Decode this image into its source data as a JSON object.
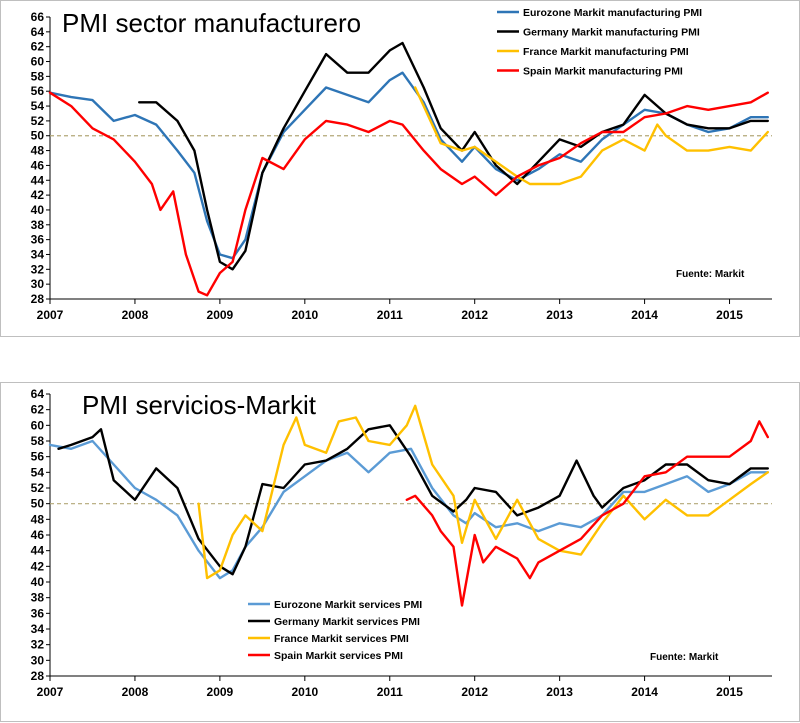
{
  "chart_data": [
    {
      "type": "line",
      "title": "PMI sector manufacturero",
      "source": "Fuente: Markit",
      "ylim": [
        28,
        66
      ],
      "ytick_step": 2,
      "xlim": [
        2007,
        2015.5
      ],
      "x_ticks": [
        2007,
        2008,
        2009,
        2010,
        2011,
        2012,
        2013,
        2014,
        2015
      ],
      "reference_line": 50,
      "series": [
        {
          "name": "Eurozone Markit manufacturing PMI",
          "color": "#2e75b6",
          "x": [
            2007.0,
            2007.25,
            2007.5,
            2007.75,
            2008.0,
            2008.25,
            2008.5,
            2008.7,
            2008.85,
            2009.0,
            2009.15,
            2009.3,
            2009.5,
            2009.75,
            2010.0,
            2010.25,
            2010.5,
            2010.75,
            2011.0,
            2011.15,
            2011.4,
            2011.6,
            2011.85,
            2012.0,
            2012.25,
            2012.5,
            2012.75,
            2013.0,
            2013.25,
            2013.5,
            2013.75,
            2014.0,
            2014.25,
            2014.5,
            2014.75,
            2015.0,
            2015.25,
            2015.45
          ],
          "y": [
            55.8,
            55.2,
            54.8,
            52.0,
            52.8,
            51.5,
            48.0,
            45.0,
            38.5,
            34.0,
            33.5,
            36.0,
            45.0,
            50.5,
            53.5,
            56.5,
            55.5,
            54.5,
            57.5,
            58.5,
            54.5,
            49.5,
            46.5,
            48.5,
            45.5,
            44.0,
            45.5,
            47.5,
            46.5,
            49.5,
            51.5,
            53.5,
            53.0,
            51.5,
            50.5,
            51.0,
            52.5,
            52.5
          ]
        },
        {
          "name": "Germany Markit manufacturing PMI",
          "color": "#000000",
          "x": [
            2008.05,
            2008.25,
            2008.5,
            2008.7,
            2008.85,
            2009.0,
            2009.15,
            2009.3,
            2009.5,
            2009.75,
            2010.0,
            2010.25,
            2010.5,
            2010.75,
            2011.0,
            2011.15,
            2011.4,
            2011.6,
            2011.85,
            2012.0,
            2012.25,
            2012.5,
            2012.75,
            2013.0,
            2013.25,
            2013.5,
            2013.75,
            2014.0,
            2014.25,
            2014.5,
            2014.75,
            2015.0,
            2015.25,
            2015.45
          ],
          "y": [
            54.5,
            54.5,
            52.0,
            48.0,
            40.0,
            33.0,
            32.0,
            34.5,
            45.0,
            51.0,
            56.0,
            61.0,
            58.5,
            58.5,
            61.5,
            62.5,
            56.5,
            51.0,
            48.0,
            50.5,
            46.0,
            43.5,
            46.5,
            49.5,
            48.5,
            50.5,
            51.5,
            55.5,
            53.0,
            51.5,
            51.0,
            51.0,
            52.0,
            52.0
          ]
        },
        {
          "name": "France Markit manufacturing PMI",
          "color": "#ffc000",
          "x": [
            2011.3,
            2011.6,
            2011.85,
            2012.0,
            2012.25,
            2012.5,
            2012.65,
            2012.75,
            2013.0,
            2013.25,
            2013.5,
            2013.75,
            2014.0,
            2014.15,
            2014.25,
            2014.5,
            2014.75,
            2015.0,
            2015.25,
            2015.45
          ],
          "y": [
            56.5,
            49.0,
            48.0,
            48.5,
            46.5,
            44.5,
            43.5,
            43.5,
            43.5,
            44.5,
            48.0,
            49.5,
            48.0,
            51.5,
            50.0,
            48.0,
            48.0,
            48.5,
            48.0,
            50.5
          ]
        },
        {
          "name": "Spain Markit manufacturing PMI",
          "color": "#ff0000",
          "x": [
            2007.0,
            2007.25,
            2007.5,
            2007.75,
            2008.0,
            2008.2,
            2008.3,
            2008.45,
            2008.6,
            2008.75,
            2008.85,
            2009.0,
            2009.15,
            2009.3,
            2009.5,
            2009.75,
            2010.0,
            2010.25,
            2010.5,
            2010.75,
            2011.0,
            2011.15,
            2011.4,
            2011.6,
            2011.85,
            2012.0,
            2012.25,
            2012.5,
            2012.75,
            2013.0,
            2013.25,
            2013.5,
            2013.75,
            2014.0,
            2014.25,
            2014.5,
            2014.75,
            2015.0,
            2015.25,
            2015.45
          ],
          "y": [
            55.8,
            54.0,
            51.0,
            49.5,
            46.5,
            43.5,
            40.0,
            42.5,
            34.0,
            29.0,
            28.5,
            31.5,
            33.0,
            40.0,
            47.0,
            45.5,
            49.5,
            52.0,
            51.5,
            50.5,
            52.0,
            51.5,
            48.0,
            45.5,
            43.5,
            44.5,
            42.0,
            44.5,
            46.0,
            47.0,
            49.0,
            50.5,
            50.5,
            52.5,
            53.0,
            54.0,
            53.5,
            54.0,
            54.5,
            55.8
          ]
        }
      ]
    },
    {
      "type": "line",
      "title": "PMI servicios-Markit",
      "source": "Fuente: Markit",
      "ylim": [
        28,
        64
      ],
      "ytick_step": 2,
      "xlim": [
        2007,
        2015.5
      ],
      "x_ticks": [
        2007,
        2008,
        2009,
        2010,
        2011,
        2012,
        2013,
        2014,
        2015
      ],
      "reference_line": 50,
      "series": [
        {
          "name": "Eurozone Markit services PMI",
          "color": "#5b9bd5",
          "x": [
            2007.0,
            2007.25,
            2007.5,
            2007.75,
            2008.0,
            2008.25,
            2008.5,
            2008.75,
            2009.0,
            2009.15,
            2009.3,
            2009.5,
            2009.75,
            2010.0,
            2010.25,
            2010.5,
            2010.75,
            2011.0,
            2011.25,
            2011.5,
            2011.75,
            2011.9,
            2012.0,
            2012.25,
            2012.5,
            2012.75,
            2013.0,
            2013.25,
            2013.5,
            2013.75,
            2014.0,
            2014.25,
            2014.5,
            2014.75,
            2015.0,
            2015.25,
            2015.45
          ],
          "y": [
            57.5,
            57.0,
            58.0,
            55.0,
            52.0,
            50.5,
            48.5,
            44.0,
            40.5,
            41.5,
            44.5,
            47.0,
            51.5,
            53.5,
            55.5,
            56.5,
            54.0,
            56.5,
            57.0,
            52.0,
            48.5,
            47.5,
            48.8,
            47.0,
            47.5,
            46.5,
            47.5,
            47.0,
            48.5,
            51.5,
            51.5,
            52.5,
            53.5,
            51.5,
            52.5,
            54.0,
            54.0
          ]
        },
        {
          "name": "Germany Markit services PMI",
          "color": "#000000",
          "x": [
            2007.1,
            2007.25,
            2007.5,
            2007.6,
            2007.75,
            2008.0,
            2008.25,
            2008.5,
            2008.75,
            2009.0,
            2009.15,
            2009.3,
            2009.5,
            2009.75,
            2010.0,
            2010.25,
            2010.5,
            2010.75,
            2011.0,
            2011.25,
            2011.5,
            2011.75,
            2011.9,
            2012.0,
            2012.25,
            2012.5,
            2012.75,
            2013.0,
            2013.2,
            2013.4,
            2013.5,
            2013.75,
            2014.0,
            2014.25,
            2014.5,
            2014.75,
            2015.0,
            2015.25,
            2015.45
          ],
          "y": [
            57.0,
            57.5,
            58.5,
            59.5,
            53.0,
            50.5,
            54.5,
            52.0,
            45.5,
            42.0,
            41.0,
            44.5,
            52.5,
            52.0,
            55.0,
            55.5,
            57.0,
            59.5,
            60.0,
            56.0,
            51.0,
            49.0,
            50.5,
            52.0,
            51.5,
            48.5,
            49.5,
            51.0,
            55.5,
            51.0,
            49.5,
            52.0,
            53.0,
            55.0,
            55.0,
            53.0,
            52.5,
            54.5,
            54.5
          ]
        },
        {
          "name": "France Markit services PMI",
          "color": "#ffc000",
          "x": [
            2008.75,
            2008.85,
            2009.0,
            2009.15,
            2009.3,
            2009.5,
            2009.75,
            2009.9,
            2010.0,
            2010.25,
            2010.4,
            2010.6,
            2010.75,
            2011.0,
            2011.2,
            2011.3,
            2011.5,
            2011.75,
            2011.85,
            2012.0,
            2012.25,
            2012.5,
            2012.75,
            2013.0,
            2013.25,
            2013.5,
            2013.75,
            2014.0,
            2014.25,
            2014.5,
            2014.75,
            2015.0,
            2015.25,
            2015.45
          ],
          "y": [
            50.0,
            40.5,
            41.5,
            46.0,
            48.5,
            46.5,
            57.5,
            61.0,
            57.5,
            56.5,
            60.5,
            61.0,
            58.0,
            57.5,
            60.0,
            62.5,
            55.0,
            51.0,
            45.0,
            50.5,
            45.5,
            50.5,
            45.5,
            44.0,
            43.5,
            47.5,
            51.0,
            48.0,
            50.5,
            48.5,
            48.5,
            50.5,
            52.5,
            54.0
          ]
        },
        {
          "name": "Spain Markit services PMI",
          "color": "#ff0000",
          "x": [
            2011.2,
            2011.3,
            2011.5,
            2011.6,
            2011.75,
            2011.85,
            2012.0,
            2012.1,
            2012.25,
            2012.5,
            2012.65,
            2012.75,
            2013.0,
            2013.25,
            2013.5,
            2013.75,
            2014.0,
            2014.25,
            2014.5,
            2014.75,
            2015.0,
            2015.25,
            2015.35,
            2015.45
          ],
          "y": [
            50.5,
            51.0,
            48.5,
            46.5,
            44.5,
            37.0,
            46.0,
            42.5,
            44.5,
            43.0,
            40.5,
            42.5,
            44.0,
            45.5,
            48.5,
            50.0,
            53.5,
            54.0,
            56.0,
            56.0,
            56.0,
            58.0,
            60.5,
            58.5
          ]
        }
      ]
    }
  ]
}
